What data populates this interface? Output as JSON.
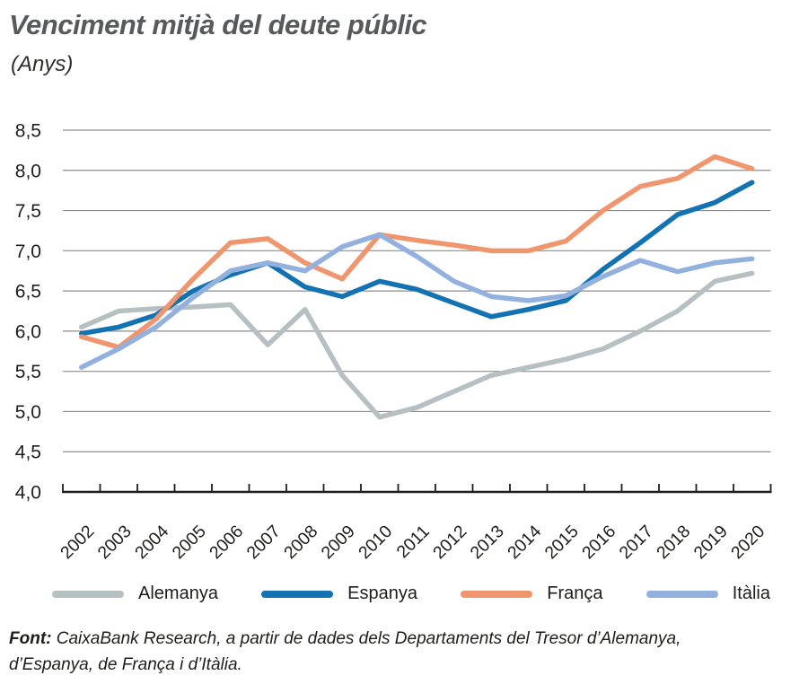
{
  "title": "Venciment mitjà del deute públic",
  "subtitle": "(Anys)",
  "source": {
    "label": "Font:",
    "text": " CaixaBank Research, a partir de dades dels Departaments del Tresor d’Alemanya, d’Espanya, de França i d’Itàlia."
  },
  "colors": {
    "title": "#58595b",
    "text": "#1d1d1b",
    "gridline": "#8c8c8c",
    "axis": "#1d1d1b"
  },
  "chart_data": {
    "type": "line",
    "x": [
      2002,
      2003,
      2004,
      2005,
      2006,
      2007,
      2008,
      2009,
      2010,
      2011,
      2012,
      2013,
      2014,
      2015,
      2016,
      2017,
      2018,
      2019,
      2020
    ],
    "series": [
      {
        "name": "Alemanya",
        "color": "#b6bfc2",
        "values": [
          6.05,
          6.25,
          6.28,
          6.3,
          6.33,
          5.83,
          6.27,
          5.45,
          4.93,
          5.05,
          5.25,
          5.45,
          5.55,
          5.65,
          5.78,
          6.0,
          6.25,
          6.62,
          6.72
        ]
      },
      {
        "name": "Espanya",
        "color": "#1272b2",
        "values": [
          5.97,
          6.05,
          6.2,
          6.5,
          6.7,
          6.85,
          6.55,
          6.43,
          6.62,
          6.52,
          6.35,
          6.18,
          6.27,
          6.38,
          6.77,
          7.1,
          7.45,
          7.6,
          7.85
        ]
      },
      {
        "name": "França",
        "color": "#f0966f",
        "values": [
          5.93,
          5.8,
          6.15,
          6.65,
          7.1,
          7.15,
          6.85,
          6.65,
          7.2,
          7.13,
          7.07,
          7.0,
          7.0,
          7.12,
          7.5,
          7.8,
          7.9,
          8.17,
          8.02
        ]
      },
      {
        "name": "Itàlia",
        "color": "#93b1de",
        "values": [
          5.55,
          5.78,
          6.05,
          6.42,
          6.75,
          6.85,
          6.75,
          7.05,
          7.2,
          6.93,
          6.62,
          6.43,
          6.38,
          6.44,
          6.68,
          6.88,
          6.74,
          6.85,
          6.9
        ]
      }
    ],
    "ylim": [
      4.0,
      8.5
    ],
    "ytick_step": 0.5,
    "decimal_separator": ",",
    "grid": true,
    "legend_position": "bottom",
    "line_width": 5.5
  }
}
